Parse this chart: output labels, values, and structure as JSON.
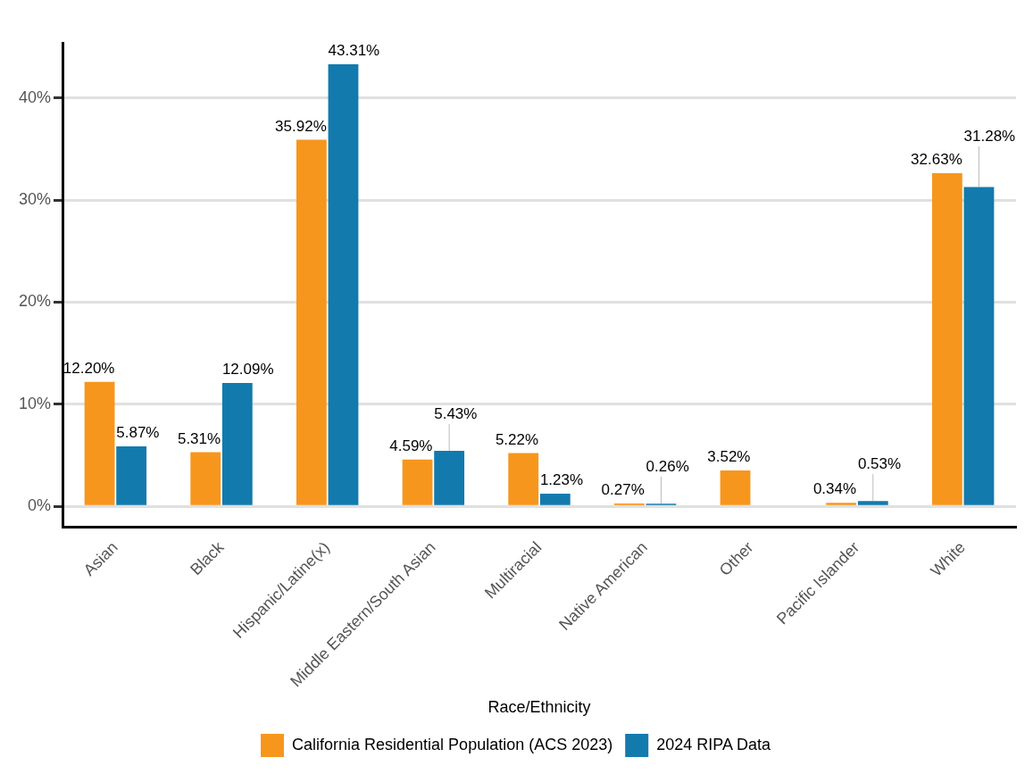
{
  "chart_data": {
    "type": "bar",
    "xlabel": "Race/Ethnicity",
    "categories": [
      "Asian",
      "Black",
      "Hispanic/Latine(x)",
      "Middle Eastern/South Asian",
      "Multiracial",
      "Native American",
      "Other",
      "Pacific Islander",
      "White"
    ],
    "series": [
      {
        "name": "California Residential Population (ACS 2023)",
        "color": "#f7961d",
        "values": [
          12.2,
          5.31,
          35.92,
          4.59,
          5.22,
          0.27,
          3.52,
          0.34,
          32.63
        ],
        "value_labels": [
          "12.20%",
          "5.31%",
          "35.92%",
          "4.59%",
          "5.22%",
          "0.27%",
          "3.52%",
          "0.34%",
          "32.63%"
        ]
      },
      {
        "name": "2024 RIPA Data",
        "color": "#137aad",
        "values": [
          5.87,
          12.09,
          43.31,
          5.43,
          1.23,
          0.26,
          null,
          0.53,
          31.28
        ],
        "value_labels": [
          "5.87%",
          "12.09%",
          "43.31%",
          "5.43%",
          "1.23%",
          "0.26%",
          null,
          "0.53%",
          "31.28%"
        ]
      }
    ],
    "ylim": [
      -2,
      45.4
    ],
    "yticks": [
      {
        "value": 0,
        "label": "0%"
      },
      {
        "value": 10,
        "label": "10%"
      },
      {
        "value": 20,
        "label": "20%"
      },
      {
        "value": 30,
        "label": "30%"
      },
      {
        "value": 40,
        "label": "40%"
      }
    ],
    "grid": "y",
    "legend": "bottom"
  }
}
